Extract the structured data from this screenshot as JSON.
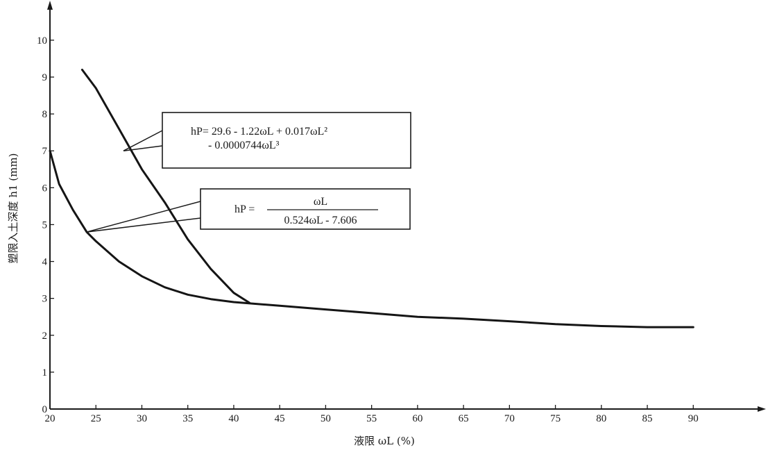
{
  "chart_data": {
    "type": "line",
    "xlabel": "液限 ωL (%)",
    "ylabel": "塑限入土深度 h1 (mm)",
    "xlim": [
      20,
      97
    ],
    "ylim": [
      0,
      10.6
    ],
    "x_ticks": [
      20,
      25,
      30,
      35,
      40,
      45,
      50,
      55,
      60,
      65,
      70,
      75,
      80,
      85,
      90
    ],
    "y_ticks": [
      0,
      1,
      2,
      3,
      4,
      5,
      6,
      7,
      8,
      9,
      10
    ],
    "grid": false,
    "series": [
      {
        "formula": {
          "main": "hP= 29.6 - 1.22ωL + 0.017ωL²",
          "cont": "- 0.0000744ωL³"
        },
        "points": [
          [
            23.5,
            9.2
          ],
          [
            25,
            8.7
          ],
          [
            27.5,
            7.6
          ],
          [
            30,
            6.5
          ],
          [
            32.5,
            5.6
          ],
          [
            35,
            4.6
          ],
          [
            37.5,
            3.8
          ],
          [
            40,
            3.15
          ],
          [
            41.7,
            2.88
          ]
        ]
      },
      {
        "formula": {
          "lhs": "hP =",
          "numerator": "ωL",
          "denominator": "0.524ωL - 7.606"
        },
        "points": [
          [
            20,
            7.0
          ],
          [
            21,
            6.1
          ],
          [
            22.5,
            5.4
          ],
          [
            24,
            4.8
          ],
          [
            25,
            4.55
          ],
          [
            27.5,
            4.0
          ],
          [
            30,
            3.6
          ],
          [
            32.5,
            3.3
          ],
          [
            35,
            3.1
          ],
          [
            37.5,
            2.98
          ],
          [
            40,
            2.9
          ],
          [
            45,
            2.8
          ],
          [
            50,
            2.7
          ],
          [
            55,
            2.6
          ],
          [
            60,
            2.5
          ],
          [
            65,
            2.45
          ],
          [
            70,
            2.38
          ],
          [
            75,
            2.3
          ],
          [
            80,
            2.25
          ],
          [
            85,
            2.22
          ],
          [
            90,
            2.22
          ]
        ]
      }
    ]
  }
}
